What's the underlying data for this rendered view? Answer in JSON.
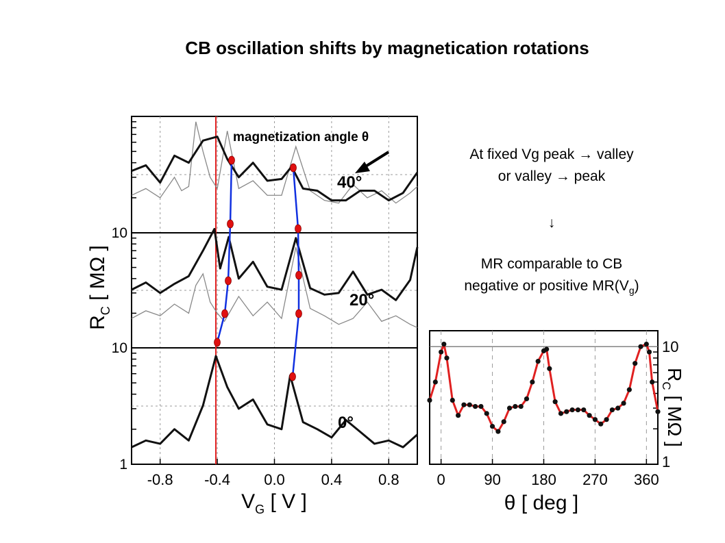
{
  "slide": {
    "title": "CB oscillation shifts by magnetication rotations",
    "note_line1": "At fixed Vg peak → valley",
    "note_line2": "or valley → peak",
    "note_arrow": "↓",
    "note_line3": "MR comparable to CB",
    "note_line4_prefix": "negative or positive MR(V",
    "note_line4_sub": "g",
    "note_line4_suffix": ")"
  },
  "chart_data": [
    {
      "type": "line",
      "xlabel_main": "V",
      "xlabel_sub": "G",
      "xlabel_unit": "[ V ]",
      "ylabel_main": "R",
      "ylabel_sub": "C",
      "ylabel_unit": "[ MΩ ]",
      "xlim": [
        -1.0,
        1.0
      ],
      "x_ticks": [
        "-0.8",
        "-0.4",
        "0.0",
        "0.4",
        "0.8"
      ],
      "y_tick_labels": [
        "1",
        "10",
        "10"
      ],
      "scale": "log, offset traces",
      "marker_line_x": -0.41,
      "annotation": "magnetization angle θ",
      "series": [
        {
          "name": "0°",
          "x": [
            -1.0,
            -0.9,
            -0.8,
            -0.7,
            -0.6,
            -0.5,
            -0.41,
            -0.33,
            -0.25,
            -0.15,
            -0.05,
            0.05,
            0.11,
            0.2,
            0.3,
            0.4,
            0.5,
            0.6,
            0.7,
            0.8,
            0.9,
            1.0
          ],
          "y": [
            1.4,
            1.6,
            1.5,
            2.0,
            1.6,
            3.2,
            8.5,
            4.6,
            3.0,
            3.6,
            2.2,
            2.0,
            5.8,
            2.3,
            2.0,
            1.7,
            2.4,
            1.9,
            1.5,
            1.6,
            1.4,
            1.8
          ]
        },
        {
          "name": "20°",
          "x": [
            -1.0,
            -0.9,
            -0.8,
            -0.7,
            -0.6,
            -0.5,
            -0.42,
            -0.38,
            -0.32,
            -0.25,
            -0.15,
            -0.05,
            0.05,
            0.15,
            0.25,
            0.35,
            0.45,
            0.55,
            0.65,
            0.75,
            0.85,
            0.95,
            1.0
          ],
          "y": [
            3.2,
            3.7,
            3.0,
            3.6,
            4.2,
            7.0,
            10.8,
            4.9,
            9.2,
            4.0,
            5.6,
            3.4,
            3.2,
            9.0,
            3.3,
            2.9,
            3.0,
            4.6,
            2.9,
            3.2,
            2.6,
            3.9,
            7.5
          ]
        },
        {
          "name": "40°",
          "x": [
            -1.0,
            -0.9,
            -0.8,
            -0.7,
            -0.6,
            -0.5,
            -0.4,
            -0.33,
            -0.25,
            -0.15,
            -0.05,
            0.05,
            0.12,
            0.2,
            0.3,
            0.4,
            0.5,
            0.6,
            0.7,
            0.8,
            0.9,
            1.0
          ],
          "y": [
            3.4,
            3.8,
            2.7,
            4.6,
            4.0,
            6.2,
            6.7,
            4.3,
            3.0,
            4.0,
            2.8,
            2.9,
            3.7,
            2.4,
            2.3,
            1.9,
            1.9,
            2.3,
            2.3,
            1.9,
            2.2,
            3.3
          ]
        }
      ],
      "peak_markers": [
        {
          "trace": "0°",
          "x": [
            -0.43,
            0.1
          ]
        },
        {
          "trace": "20°",
          "x": [
            -0.37,
            -0.33,
            0.15,
            0.14
          ]
        },
        {
          "trace": "40°",
          "x": [
            -0.33,
            -0.33,
            0.13,
            0.15
          ]
        }
      ]
    },
    {
      "type": "scatter",
      "xlabel": "θ [ deg ]",
      "ylabel_main": "R",
      "ylabel_sub": "C",
      "ylabel_unit": "[ MΩ ]",
      "xlim": [
        -20,
        380
      ],
      "x_ticks": [
        "0",
        "90",
        "180",
        "270",
        "360"
      ],
      "y_ticks": [
        "1",
        "10"
      ],
      "y_scale": "log",
      "x": [
        -20,
        -10,
        0,
        5,
        10,
        20,
        30,
        40,
        50,
        60,
        70,
        80,
        90,
        100,
        110,
        120,
        130,
        140,
        150,
        160,
        170,
        180,
        185,
        190,
        200,
        210,
        220,
        230,
        240,
        250,
        260,
        270,
        280,
        290,
        300,
        310,
        320,
        330,
        340,
        350,
        360,
        365,
        370,
        380
      ],
      "y": [
        3.5,
        5.0,
        9.0,
        10.5,
        8.0,
        3.5,
        2.6,
        3.2,
        3.2,
        3.1,
        3.1,
        2.7,
        2.1,
        1.9,
        2.3,
        3.0,
        3.1,
        3.1,
        3.6,
        5.0,
        7.5,
        9.2,
        9.5,
        6.5,
        3.4,
        2.7,
        2.8,
        2.9,
        2.9,
        2.9,
        2.6,
        2.4,
        2.2,
        2.4,
        2.9,
        3.0,
        3.3,
        4.3,
        7.2,
        10.0,
        10.5,
        9.0,
        5.0,
        2.8
      ]
    }
  ]
}
